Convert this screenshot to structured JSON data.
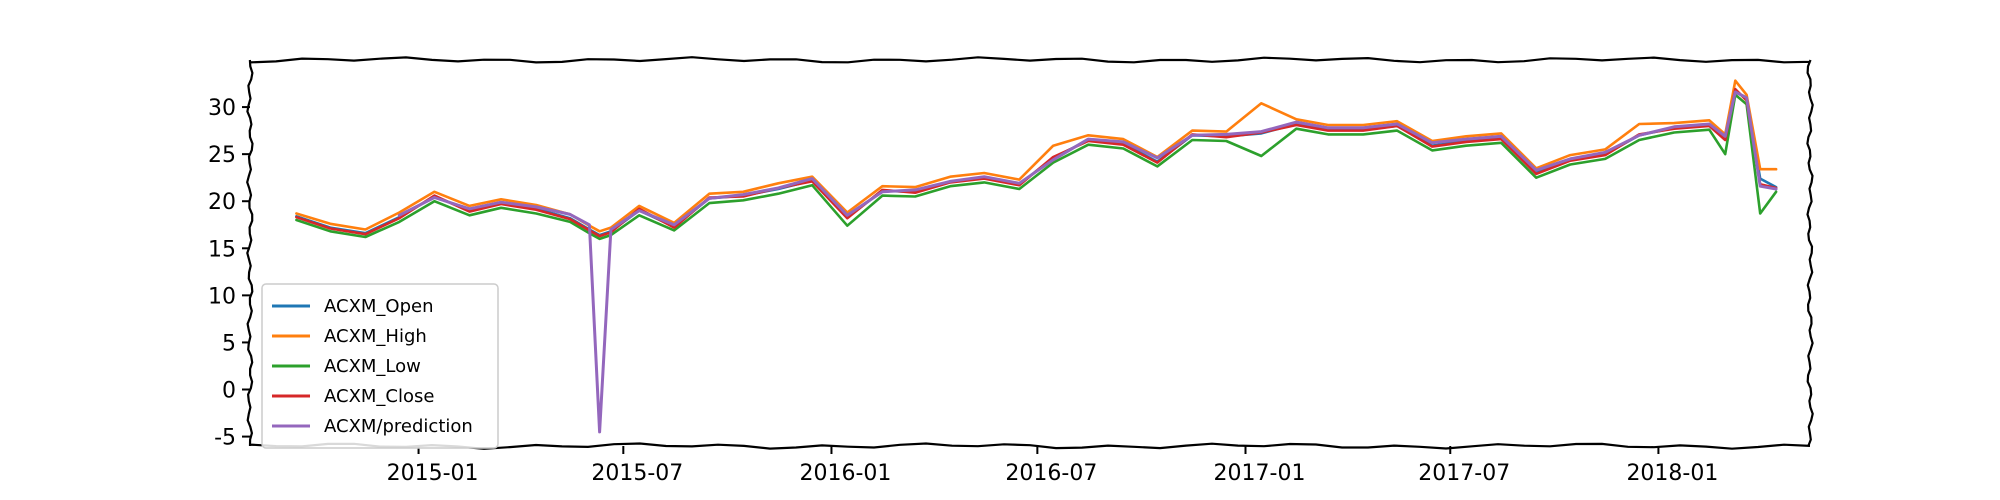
{
  "chart_data": {
    "type": "line",
    "title": "",
    "xlabel": "",
    "ylabel": "",
    "x_axis": {
      "type": "date",
      "range": [
        "2014-08-05",
        "2018-05-15"
      ],
      "ticks": [
        {
          "date": "2015-01-01",
          "label": "2015-01"
        },
        {
          "date": "2015-07-01",
          "label": "2015-07"
        },
        {
          "date": "2016-01-01",
          "label": "2016-01"
        },
        {
          "date": "2016-07-01",
          "label": "2016-07"
        },
        {
          "date": "2017-01-01",
          "label": "2017-01"
        },
        {
          "date": "2017-07-01",
          "label": "2017-07"
        },
        {
          "date": "2018-01-01",
          "label": "2018-01"
        }
      ]
    },
    "y_axis": {
      "range": [
        -6,
        35
      ],
      "ticks": [
        -5,
        0,
        5,
        10,
        15,
        20,
        25,
        30
      ]
    },
    "grid": false,
    "style": "xkcd sketch",
    "legend": {
      "placement": "lower-left"
    },
    "x": [
      "2014-09-15",
      "2014-10-15",
      "2014-11-15",
      "2014-12-15",
      "2015-01-15",
      "2015-02-15",
      "2015-03-15",
      "2015-04-15",
      "2015-05-15",
      "2015-06-01",
      "2015-06-10",
      "2015-06-20",
      "2015-07-15",
      "2015-08-15",
      "2015-09-15",
      "2015-10-15",
      "2015-11-15",
      "2015-12-15",
      "2016-01-15",
      "2016-02-15",
      "2016-03-15",
      "2016-04-15",
      "2016-05-15",
      "2016-06-15",
      "2016-07-15",
      "2016-08-15",
      "2016-09-15",
      "2016-10-15",
      "2016-11-15",
      "2016-12-15",
      "2017-01-15",
      "2017-02-15",
      "2017-03-15",
      "2017-04-15",
      "2017-05-15",
      "2017-06-15",
      "2017-07-15",
      "2017-08-15",
      "2017-09-15",
      "2017-10-15",
      "2017-11-15",
      "2017-12-15",
      "2018-01-15",
      "2018-02-15",
      "2018-03-01",
      "2018-03-10",
      "2018-03-20",
      "2018-04-01",
      "2018-04-15"
    ],
    "series": [
      {
        "name": "ACXM_Open",
        "color": "#1f77b4",
        "values": [
          18.4,
          17.2,
          16.6,
          18.3,
          20.5,
          19.0,
          19.8,
          19.2,
          18.2,
          17.0,
          16.4,
          16.8,
          19.0,
          17.3,
          20.3,
          20.6,
          21.3,
          22.2,
          18.3,
          21.1,
          21.0,
          22.1,
          22.5,
          21.8,
          24.6,
          26.5,
          26.1,
          24.2,
          27.0,
          26.9,
          27.2,
          28.2,
          27.6,
          27.6,
          28.0,
          25.9,
          26.4,
          26.7,
          23.0,
          24.4,
          25.0,
          27.0,
          27.8,
          28.1,
          26.6,
          31.8,
          30.8,
          22.4,
          21.5
        ]
      },
      {
        "name": "ACXM_High",
        "color": "#ff7f0e",
        "values": [
          18.7,
          17.6,
          17.0,
          18.8,
          21.0,
          19.5,
          20.2,
          19.6,
          18.6,
          17.4,
          16.8,
          17.2,
          19.5,
          17.7,
          20.8,
          21.0,
          21.9,
          22.6,
          18.8,
          21.6,
          21.5,
          22.6,
          23.0,
          22.3,
          25.9,
          27.0,
          26.6,
          24.7,
          27.5,
          27.4,
          30.4,
          28.7,
          28.1,
          28.1,
          28.5,
          26.4,
          26.9,
          27.2,
          23.5,
          24.9,
          25.5,
          28.2,
          28.3,
          28.6,
          27.1,
          32.8,
          31.3,
          23.4,
          23.4
        ]
      },
      {
        "name": "ACXM_Low",
        "color": "#2ca02c",
        "values": [
          18.0,
          16.8,
          16.2,
          17.8,
          20.0,
          18.5,
          19.3,
          18.7,
          17.8,
          16.6,
          16.0,
          16.4,
          18.5,
          16.9,
          19.8,
          20.1,
          20.8,
          21.7,
          17.4,
          20.6,
          20.5,
          21.6,
          22.0,
          21.3,
          24.1,
          26.0,
          25.6,
          23.7,
          26.5,
          26.4,
          24.8,
          27.7,
          27.1,
          27.1,
          27.5,
          25.4,
          25.9,
          26.2,
          22.5,
          23.9,
          24.5,
          26.5,
          27.3,
          27.6,
          25.0,
          31.3,
          30.3,
          18.7,
          21.0
        ]
      },
      {
        "name": "ACXM_Close",
        "color": "#d62728",
        "values": [
          18.3,
          17.1,
          16.5,
          18.2,
          20.6,
          18.9,
          19.7,
          19.1,
          18.1,
          16.9,
          16.3,
          16.7,
          19.2,
          17.2,
          20.4,
          20.5,
          21.4,
          22.1,
          18.2,
          21.2,
          20.9,
          22.0,
          22.4,
          21.7,
          24.7,
          26.4,
          26.0,
          24.1,
          27.1,
          26.8,
          27.3,
          28.1,
          27.5,
          27.5,
          28.0,
          25.8,
          26.3,
          26.6,
          22.9,
          24.3,
          24.9,
          27.1,
          27.7,
          28.0,
          26.5,
          31.9,
          30.7,
          21.8,
          21.4
        ]
      },
      {
        "name": "ACXM/prediction",
        "color": "#9467bd",
        "values": [
          null,
          null,
          null,
          18.5,
          20.4,
          19.2,
          19.9,
          19.4,
          18.6,
          17.5,
          -4.5,
          17.0,
          19.0,
          17.5,
          20.3,
          20.7,
          21.4,
          22.4,
          18.5,
          21.0,
          21.2,
          22.1,
          22.6,
          21.9,
          24.4,
          26.6,
          26.3,
          24.6,
          27.0,
          27.1,
          27.4,
          28.4,
          27.8,
          27.8,
          28.2,
          26.2,
          26.6,
          26.9,
          23.3,
          24.5,
          25.2,
          27.0,
          27.9,
          28.2,
          26.9,
          31.6,
          31.0,
          21.6,
          21.3
        ]
      }
    ]
  }
}
